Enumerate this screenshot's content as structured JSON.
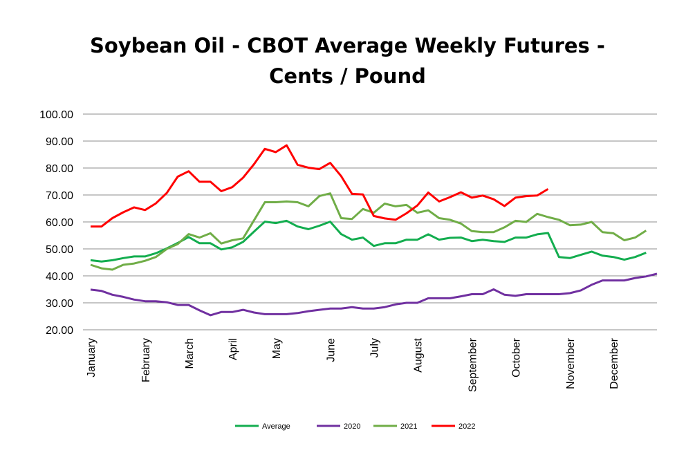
{
  "chart_data": {
    "type": "line",
    "title": "Soybean Oil - CBOT Average Weekly Futures -",
    "subtitle": "Cents / Pound",
    "xlabel": "",
    "ylabel": "",
    "ylim": [
      20,
      100
    ],
    "yticks": [
      "20.00",
      "30.00",
      "40.00",
      "50.00",
      "60.00",
      "70.00",
      "80.00",
      "90.00",
      "100.00"
    ],
    "x_month_labels": [
      {
        "label": "January",
        "week": 1
      },
      {
        "label": "February",
        "week": 6
      },
      {
        "label": "March",
        "week": 10
      },
      {
        "label": "April",
        "week": 14
      },
      {
        "label": "May",
        "week": 18
      },
      {
        "label": "June",
        "week": 23
      },
      {
        "label": "July",
        "week": 27
      },
      {
        "label": "August",
        "week": 31
      },
      {
        "label": "September",
        "week": 36
      },
      {
        "label": "October",
        "week": 40
      },
      {
        "label": "November",
        "week": 45
      },
      {
        "label": "December",
        "week": 49
      }
    ],
    "grid": "horizontal",
    "legend_position": "bottom",
    "series": [
      {
        "name": "Average",
        "color": "#13ad4f",
        "values": [
          45.8,
          45.3,
          45.8,
          46.6,
          47.2,
          47.2,
          48.4,
          50.2,
          52.2,
          54.4,
          52.1,
          52.1,
          49.8,
          50.6,
          52.6,
          56.4,
          60.1,
          59.6,
          60.4,
          58.3,
          57.3,
          58.6,
          60.1,
          55.5,
          53.4,
          54.2,
          51.1,
          52.1,
          52.1,
          53.4,
          53.4,
          55.4,
          53.4,
          54.1,
          54.2,
          52.9,
          53.4,
          52.9,
          52.6,
          54.2,
          54.2,
          55.4,
          55.9,
          47.0,
          46.6,
          47.8,
          49.0,
          47.5,
          47.0,
          46.0,
          47.0,
          48.6
        ]
      },
      {
        "name": "2020",
        "color": "#7030a0",
        "values": [
          34.9,
          34.4,
          33.0,
          32.2,
          31.2,
          30.6,
          30.6,
          30.2,
          29.2,
          29.2,
          27.2,
          25.4,
          26.6,
          26.6,
          27.4,
          26.4,
          25.8,
          25.8,
          25.8,
          26.2,
          26.9,
          27.4,
          27.9,
          27.9,
          28.4,
          27.9,
          27.9,
          28.4,
          29.4,
          30.0,
          30.0,
          31.7,
          31.7,
          31.7,
          32.4,
          33.2,
          33.2,
          35.0,
          33.0,
          32.6,
          33.2,
          33.2,
          33.2,
          33.2,
          33.6,
          34.6,
          36.7,
          38.3,
          38.3,
          38.3,
          39.2,
          39.8,
          40.8
        ]
      },
      {
        "name": "2021",
        "color": "#70ad47",
        "values": [
          44.1,
          42.8,
          42.3,
          44.1,
          44.6,
          45.6,
          47.0,
          50.0,
          51.8,
          55.5,
          54.2,
          55.8,
          52.0,
          53.2,
          53.9,
          60.6,
          67.3,
          67.3,
          67.6,
          67.3,
          65.8,
          69.6,
          70.6,
          61.4,
          61.1,
          64.8,
          63.4,
          66.8,
          65.8,
          66.3,
          63.4,
          64.3,
          61.4,
          60.8,
          59.4,
          56.6,
          56.2,
          56.2,
          58.0,
          60.4,
          60.0,
          63.0,
          61.8,
          60.8,
          58.8,
          59.0,
          60.0,
          56.2,
          55.8,
          53.2,
          54.2,
          56.8
        ]
      },
      {
        "name": "2022",
        "color": "#ff0000",
        "values": [
          58.3,
          58.3,
          61.4,
          63.6,
          65.4,
          64.4,
          66.9,
          70.8,
          76.8,
          78.8,
          74.9,
          74.9,
          71.4,
          72.9,
          76.4,
          81.4,
          87.1,
          85.9,
          88.4,
          81.2,
          80.1,
          79.6,
          81.9,
          77.0,
          70.4,
          70.2,
          62.2,
          61.3,
          60.8,
          63.2,
          66.1,
          70.9,
          67.6,
          69.2,
          71.0,
          69.0,
          69.8,
          68.4,
          65.9,
          69.0,
          69.6,
          69.8,
          72.2
        ]
      }
    ]
  }
}
